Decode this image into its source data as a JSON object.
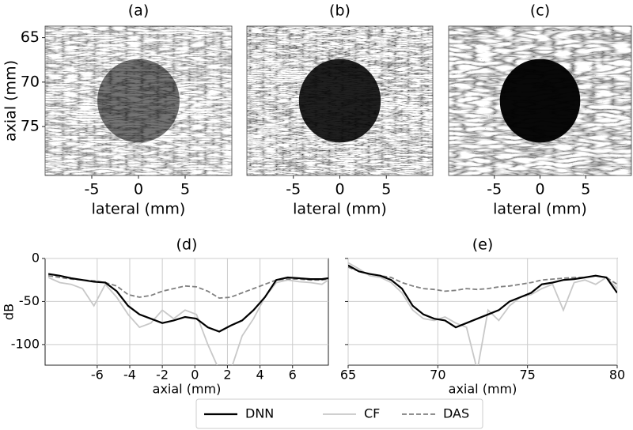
{
  "chart_data": [
    {
      "type": "image",
      "title": "(a)",
      "xlabel": "lateral (mm)",
      "ylabel": "axial (mm)",
      "xlim": [
        -10,
        10
      ],
      "ylim": [
        63.7,
        80.5
      ],
      "y_inverted": true,
      "xticks": [
        -5,
        0,
        5
      ],
      "yticks": [
        65,
        70,
        75
      ]
    },
    {
      "type": "image",
      "title": "(b)",
      "xlabel": "lateral (mm)",
      "xlim": [
        -10,
        10
      ],
      "ylim": [
        63.7,
        80.5
      ],
      "y_inverted": true,
      "xticks": [
        -5,
        0,
        5
      ]
    },
    {
      "type": "image",
      "title": "(c)",
      "xlabel": "lateral (mm)",
      "xlim": [
        -10,
        10
      ],
      "ylim": [
        63.7,
        80.5
      ],
      "y_inverted": true,
      "xticks": [
        -5,
        0,
        5
      ]
    },
    {
      "type": "line",
      "title": "(d)",
      "xlabel": "axial (mm)",
      "ylabel": "dB",
      "xlim": [
        -9.2,
        8.2
      ],
      "ylim": [
        -124,
        0
      ],
      "xticks": [
        -6,
        -4,
        -2,
        0,
        2,
        4,
        6
      ],
      "yticks": [
        0,
        -50,
        -100
      ],
      "grid": true,
      "x": [
        -9,
        -8.3,
        -7.6,
        -6.9,
        -6.2,
        -5.5,
        -4.8,
        -4.1,
        -3.4,
        -2.7,
        -2,
        -1.3,
        -0.6,
        0.1,
        0.8,
        1.5,
        2.2,
        2.9,
        3.6,
        4.3,
        5,
        5.7,
        6.4,
        7.1,
        7.8,
        8.2
      ],
      "series": [
        {
          "name": "DNN",
          "color": "#000000",
          "values": [
            -18,
            -20,
            -23,
            -25,
            -27,
            -28,
            -38,
            -55,
            -65,
            -70,
            -75,
            -72,
            -68,
            -70,
            -80,
            -85,
            -78,
            -72,
            -60,
            -45,
            -25,
            -22,
            -23,
            -24,
            -24,
            -23
          ]
        },
        {
          "name": "CF",
          "color": "#c8c8c8",
          "values": [
            -22,
            -28,
            -30,
            -35,
            -55,
            -30,
            -45,
            -65,
            -80,
            -75,
            -60,
            -70,
            -60,
            -65,
            -100,
            -130,
            -130,
            -90,
            -70,
            -45,
            -28,
            -25,
            -27,
            -28,
            -30,
            -25
          ]
        },
        {
          "name": "DAS",
          "color": "#808080",
          "dashed": true,
          "values": [
            -20,
            -22,
            -24,
            -25,
            -26,
            -28,
            -32,
            -42,
            -45,
            -43,
            -38,
            -35,
            -32,
            -33,
            -38,
            -46,
            -45,
            -40,
            -35,
            -30,
            -25,
            -24,
            -24,
            -25,
            -25,
            -24
          ]
        }
      ]
    },
    {
      "type": "line",
      "title": "(e)",
      "xlabel": "axial (mm)",
      "xlim": [
        65,
        80
      ],
      "ylim": [
        -124,
        0
      ],
      "xticks": [
        65,
        70,
        75,
        80
      ],
      "yticks": [
        0,
        -50,
        -100
      ],
      "grid": true,
      "x": [
        65,
        65.6,
        66.2,
        66.8,
        67.4,
        68,
        68.6,
        69.2,
        69.8,
        70.4,
        71,
        71.6,
        72.2,
        72.8,
        73.4,
        74,
        74.6,
        75.2,
        75.8,
        76.4,
        77,
        77.6,
        78.2,
        78.8,
        79.4,
        80
      ],
      "series": [
        {
          "name": "DNN",
          "color": "#000000",
          "values": [
            -8,
            -15,
            -18,
            -20,
            -25,
            -35,
            -55,
            -65,
            -70,
            -72,
            -80,
            -75,
            -70,
            -65,
            -60,
            -50,
            -45,
            -40,
            -30,
            -28,
            -25,
            -24,
            -22,
            -20,
            -22,
            -40
          ]
        },
        {
          "name": "CF",
          "color": "#c8c8c8",
          "values": [
            -5,
            -12,
            -20,
            -22,
            -28,
            -40,
            -60,
            -70,
            -72,
            -68,
            -75,
            -80,
            -130,
            -60,
            -72,
            -55,
            -45,
            -42,
            -35,
            -30,
            -60,
            -28,
            -25,
            -30,
            -22,
            -35
          ]
        },
        {
          "name": "DAS",
          "color": "#808080",
          "dashed": true,
          "values": [
            -10,
            -15,
            -18,
            -20,
            -22,
            -28,
            -32,
            -35,
            -36,
            -38,
            -37,
            -35,
            -36,
            -35,
            -33,
            -32,
            -30,
            -28,
            -25,
            -24,
            -23,
            -22,
            -22,
            -20,
            -22,
            -30
          ]
        }
      ]
    }
  ]
}
